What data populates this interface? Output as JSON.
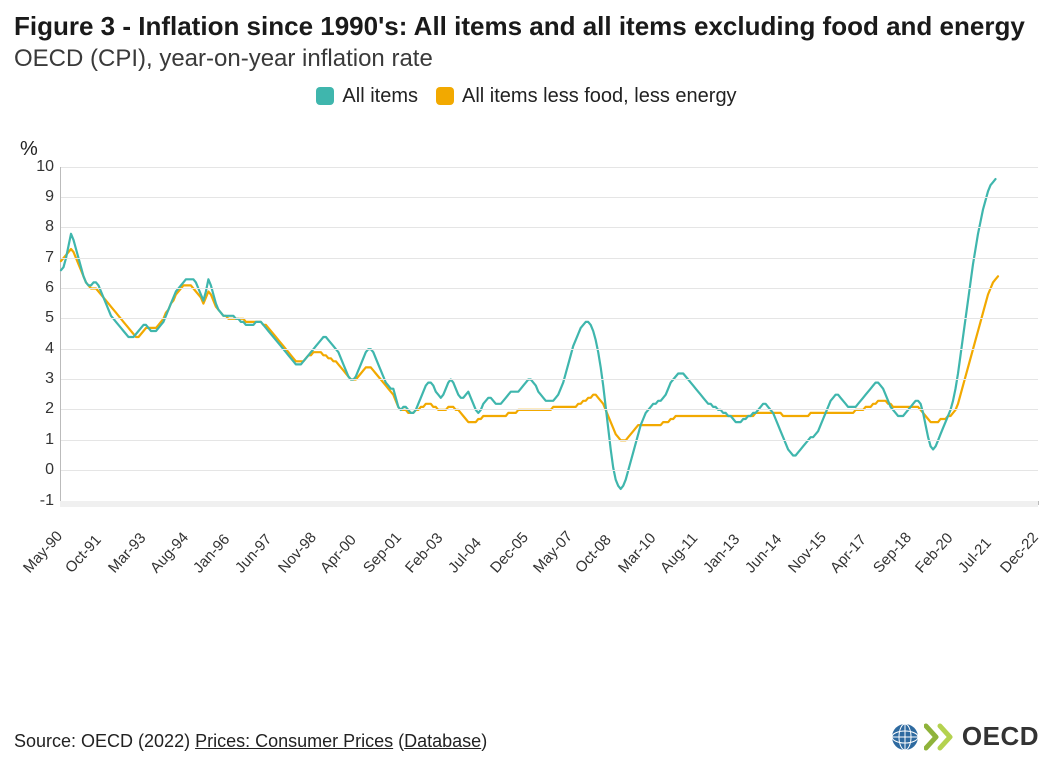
{
  "title": "Figure 3 - Inflation since 1990's: All items and all items excluding food and energy",
  "subtitle": "OECD (CPI), year-on-year inflation rate",
  "yaxis_title": "%",
  "legend": {
    "series1": {
      "label": "All items",
      "color": "#3fb6ad"
    },
    "series2": {
      "label": "All items less food, less energy",
      "color": "#f2a900"
    }
  },
  "chart": {
    "type": "line",
    "background_color": "#ffffff",
    "grid_color": "#e5e5e5",
    "axis_color": "#bbbbbb",
    "line_width": 2.2,
    "ylim": [
      -1,
      10
    ],
    "yticks": [
      -1,
      0,
      1,
      2,
      3,
      4,
      5,
      6,
      7,
      8,
      9,
      10
    ],
    "x_count": 392,
    "x_labels": [
      {
        "i": 0,
        "text": "May-90"
      },
      {
        "i": 17,
        "text": "Oct-91"
      },
      {
        "i": 34,
        "text": "Mar-93"
      },
      {
        "i": 51,
        "text": "Aug-94"
      },
      {
        "i": 68,
        "text": "Jan-96"
      },
      {
        "i": 85,
        "text": "Jun-97"
      },
      {
        "i": 102,
        "text": "Nov-98"
      },
      {
        "i": 119,
        "text": "Apr-00"
      },
      {
        "i": 136,
        "text": "Sep-01"
      },
      {
        "i": 153,
        "text": "Feb-03"
      },
      {
        "i": 170,
        "text": "Jul-04"
      },
      {
        "i": 187,
        "text": "Dec-05"
      },
      {
        "i": 204,
        "text": "May-07"
      },
      {
        "i": 221,
        "text": "Oct-08"
      },
      {
        "i": 238,
        "text": "Mar-10"
      },
      {
        "i": 255,
        "text": "Aug-11"
      },
      {
        "i": 272,
        "text": "Jan-13"
      },
      {
        "i": 289,
        "text": "Jun-14"
      },
      {
        "i": 306,
        "text": "Nov-15"
      },
      {
        "i": 323,
        "text": "Apr-17"
      },
      {
        "i": 340,
        "text": "Sep-18"
      },
      {
        "i": 357,
        "text": "Feb-20"
      },
      {
        "i": 374,
        "text": "Jul-21"
      },
      {
        "i": 391,
        "text": "Dec-22"
      }
    ],
    "series1": [
      6.6,
      6.7,
      7.0,
      7.4,
      7.8,
      7.6,
      7.3,
      7.0,
      6.7,
      6.4,
      6.2,
      6.1,
      6.1,
      6.2,
      6.2,
      6.1,
      5.9,
      5.7,
      5.5,
      5.3,
      5.1,
      5.0,
      4.9,
      4.8,
      4.7,
      4.6,
      4.5,
      4.4,
      4.4,
      4.4,
      4.5,
      4.6,
      4.7,
      4.8,
      4.8,
      4.7,
      4.6,
      4.6,
      4.6,
      4.7,
      4.8,
      4.9,
      5.1,
      5.3,
      5.5,
      5.7,
      5.9,
      6.0,
      6.1,
      6.2,
      6.3,
      6.3,
      6.3,
      6.3,
      6.2,
      6.0,
      5.8,
      5.6,
      5.9,
      6.3,
      6.1,
      5.8,
      5.5,
      5.3,
      5.2,
      5.1,
      5.1,
      5.1,
      5.1,
      5.1,
      5.0,
      5.0,
      4.9,
      4.9,
      4.8,
      4.8,
      4.8,
      4.8,
      4.9,
      4.9,
      4.9,
      4.8,
      4.7,
      4.6,
      4.5,
      4.4,
      4.3,
      4.2,
      4.1,
      4.0,
      3.9,
      3.8,
      3.7,
      3.6,
      3.5,
      3.5,
      3.5,
      3.6,
      3.7,
      3.8,
      3.9,
      4.0,
      4.1,
      4.2,
      4.3,
      4.4,
      4.4,
      4.3,
      4.2,
      4.1,
      4.0,
      3.9,
      3.7,
      3.5,
      3.3,
      3.1,
      3.0,
      3.0,
      3.1,
      3.3,
      3.5,
      3.7,
      3.9,
      4.0,
      4.0,
      3.9,
      3.7,
      3.5,
      3.3,
      3.1,
      2.9,
      2.8,
      2.7,
      2.7,
      2.4,
      2.1,
      2.0,
      2.1,
      2.1,
      2.0,
      1.9,
      1.9,
      2.0,
      2.2,
      2.4,
      2.6,
      2.8,
      2.9,
      2.9,
      2.8,
      2.6,
      2.5,
      2.4,
      2.5,
      2.7,
      2.9,
      3.0,
      2.9,
      2.7,
      2.5,
      2.4,
      2.4,
      2.5,
      2.6,
      2.4,
      2.2,
      2.0,
      1.9,
      2.0,
      2.2,
      2.3,
      2.4,
      2.4,
      2.3,
      2.2,
      2.2,
      2.2,
      2.3,
      2.4,
      2.5,
      2.6,
      2.6,
      2.6,
      2.6,
      2.7,
      2.8,
      2.9,
      3.0,
      3.0,
      2.9,
      2.8,
      2.6,
      2.5,
      2.4,
      2.3,
      2.3,
      2.3,
      2.3,
      2.4,
      2.5,
      2.7,
      2.9,
      3.2,
      3.5,
      3.8,
      4.1,
      4.3,
      4.5,
      4.7,
      4.8,
      4.9,
      4.9,
      4.8,
      4.6,
      4.3,
      3.9,
      3.4,
      2.8,
      2.1,
      1.4,
      0.7,
      0.1,
      -0.3,
      -0.5,
      -0.6,
      -0.5,
      -0.3,
      0.0,
      0.3,
      0.6,
      0.9,
      1.2,
      1.5,
      1.7,
      1.9,
      2.0,
      2.1,
      2.2,
      2.2,
      2.3,
      2.3,
      2.4,
      2.5,
      2.7,
      2.9,
      3.0,
      3.1,
      3.2,
      3.2,
      3.2,
      3.1,
      3.0,
      2.9,
      2.8,
      2.7,
      2.6,
      2.5,
      2.4,
      2.3,
      2.2,
      2.2,
      2.1,
      2.1,
      2.0,
      2.0,
      1.9,
      1.9,
      1.8,
      1.8,
      1.7,
      1.6,
      1.6,
      1.6,
      1.7,
      1.7,
      1.8,
      1.8,
      1.9,
      1.9,
      2.0,
      2.1,
      2.2,
      2.2,
      2.1,
      2.0,
      1.9,
      1.7,
      1.5,
      1.3,
      1.1,
      0.9,
      0.7,
      0.6,
      0.5,
      0.5,
      0.6,
      0.7,
      0.8,
      0.9,
      1.0,
      1.1,
      1.1,
      1.2,
      1.3,
      1.5,
      1.7,
      1.9,
      2.1,
      2.3,
      2.4,
      2.5,
      2.5,
      2.4,
      2.3,
      2.2,
      2.1,
      2.1,
      2.1,
      2.1,
      2.2,
      2.3,
      2.4,
      2.5,
      2.6,
      2.7,
      2.8,
      2.9,
      2.9,
      2.8,
      2.7,
      2.5,
      2.3,
      2.1,
      2.0,
      1.9,
      1.8,
      1.8,
      1.8,
      1.9,
      2.0,
      2.1,
      2.2,
      2.3,
      2.3,
      2.2,
      1.9,
      1.5,
      1.1,
      0.8,
      0.7,
      0.8,
      1.0,
      1.2,
      1.4,
      1.6,
      1.8,
      2.0,
      2.3,
      2.7,
      3.2,
      3.8,
      4.4,
      5.0,
      5.6,
      6.2,
      6.8,
      7.3,
      7.8,
      8.2,
      8.6,
      8.9,
      9.2,
      9.4,
      9.5,
      9.6
    ],
    "series2": [
      6.9,
      7.0,
      7.1,
      7.2,
      7.3,
      7.2,
      7.0,
      6.8,
      6.6,
      6.4,
      6.2,
      6.1,
      6.0,
      6.0,
      6.0,
      5.9,
      5.8,
      5.7,
      5.6,
      5.5,
      5.4,
      5.3,
      5.2,
      5.1,
      5.0,
      4.9,
      4.8,
      4.7,
      4.6,
      4.5,
      4.4,
      4.4,
      4.5,
      4.6,
      4.7,
      4.7,
      4.7,
      4.7,
      4.7,
      4.8,
      4.9,
      5.0,
      5.2,
      5.3,
      5.5,
      5.6,
      5.8,
      5.9,
      6.0,
      6.1,
      6.1,
      6.1,
      6.1,
      6.0,
      5.9,
      5.8,
      5.7,
      5.5,
      5.7,
      5.9,
      5.8,
      5.6,
      5.4,
      5.3,
      5.2,
      5.1,
      5.1,
      5.0,
      5.0,
      5.0,
      5.0,
      5.0,
      5.0,
      5.0,
      4.9,
      4.9,
      4.9,
      4.9,
      4.9,
      4.9,
      4.9,
      4.8,
      4.8,
      4.7,
      4.6,
      4.5,
      4.4,
      4.3,
      4.2,
      4.1,
      4.0,
      3.9,
      3.8,
      3.7,
      3.6,
      3.6,
      3.6,
      3.6,
      3.7,
      3.8,
      3.8,
      3.9,
      3.9,
      3.9,
      3.9,
      3.8,
      3.8,
      3.7,
      3.7,
      3.6,
      3.6,
      3.5,
      3.4,
      3.3,
      3.2,
      3.1,
      3.0,
      3.0,
      3.0,
      3.1,
      3.2,
      3.3,
      3.4,
      3.4,
      3.4,
      3.3,
      3.2,
      3.1,
      3.0,
      2.9,
      2.8,
      2.7,
      2.6,
      2.5,
      2.3,
      2.1,
      2.0,
      2.0,
      2.0,
      1.9,
      1.9,
      1.9,
      2.0,
      2.0,
      2.1,
      2.1,
      2.2,
      2.2,
      2.2,
      2.1,
      2.1,
      2.0,
      2.0,
      2.0,
      2.0,
      2.1,
      2.1,
      2.1,
      2.0,
      2.0,
      1.9,
      1.8,
      1.7,
      1.6,
      1.6,
      1.6,
      1.6,
      1.7,
      1.7,
      1.8,
      1.8,
      1.8,
      1.8,
      1.8,
      1.8,
      1.8,
      1.8,
      1.8,
      1.8,
      1.9,
      1.9,
      1.9,
      1.9,
      2.0,
      2.0,
      2.0,
      2.0,
      2.0,
      2.0,
      2.0,
      2.0,
      2.0,
      2.0,
      2.0,
      2.0,
      2.0,
      2.0,
      2.1,
      2.1,
      2.1,
      2.1,
      2.1,
      2.1,
      2.1,
      2.1,
      2.1,
      2.1,
      2.2,
      2.2,
      2.3,
      2.3,
      2.4,
      2.4,
      2.5,
      2.5,
      2.4,
      2.3,
      2.2,
      2.0,
      1.8,
      1.6,
      1.4,
      1.2,
      1.1,
      1.0,
      1.0,
      1.0,
      1.1,
      1.2,
      1.3,
      1.4,
      1.5,
      1.5,
      1.5,
      1.5,
      1.5,
      1.5,
      1.5,
      1.5,
      1.5,
      1.5,
      1.6,
      1.6,
      1.6,
      1.7,
      1.7,
      1.8,
      1.8,
      1.8,
      1.8,
      1.8,
      1.8,
      1.8,
      1.8,
      1.8,
      1.8,
      1.8,
      1.8,
      1.8,
      1.8,
      1.8,
      1.8,
      1.8,
      1.8,
      1.8,
      1.8,
      1.8,
      1.8,
      1.8,
      1.8,
      1.8,
      1.8,
      1.8,
      1.8,
      1.8,
      1.8,
      1.8,
      1.8,
      1.9,
      1.9,
      1.9,
      1.9,
      1.9,
      1.9,
      1.9,
      1.9,
      1.9,
      1.9,
      1.9,
      1.8,
      1.8,
      1.8,
      1.8,
      1.8,
      1.8,
      1.8,
      1.8,
      1.8,
      1.8,
      1.8,
      1.9,
      1.9,
      1.9,
      1.9,
      1.9,
      1.9,
      1.9,
      1.9,
      1.9,
      1.9,
      1.9,
      1.9,
      1.9,
      1.9,
      1.9,
      1.9,
      1.9,
      1.9,
      2.0,
      2.0,
      2.0,
      2.0,
      2.1,
      2.1,
      2.1,
      2.2,
      2.2,
      2.3,
      2.3,
      2.3,
      2.3,
      2.2,
      2.2,
      2.1,
      2.1,
      2.1,
      2.1,
      2.1,
      2.1,
      2.1,
      2.1,
      2.1,
      2.1,
      2.1,
      2.0,
      1.9,
      1.8,
      1.7,
      1.6,
      1.6,
      1.6,
      1.6,
      1.7,
      1.7,
      1.7,
      1.8,
      1.8,
      1.9,
      2.0,
      2.2,
      2.5,
      2.8,
      3.1,
      3.4,
      3.7,
      4.0,
      4.3,
      4.6,
      4.9,
      5.2,
      5.5,
      5.8,
      6.0,
      6.2,
      6.3,
      6.4
    ]
  },
  "source": {
    "prefix": "Source: OECD (2022) ",
    "link1": "Prices: Consumer Prices",
    "mid": " (",
    "link2": "Database",
    "suffix": ")"
  },
  "brand": "OECD",
  "brand_colors": {
    "globe": "#2e6aa0",
    "chev1": "#8fb33a",
    "chev2": "#b4d24f"
  }
}
